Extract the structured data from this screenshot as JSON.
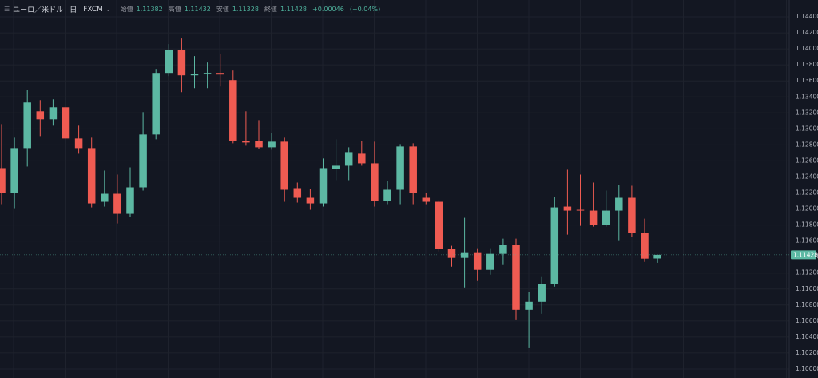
{
  "chart_data": {
    "type": "candlestick",
    "title": "ユーロ／米ドル",
    "interval": "日",
    "source": "FXCM",
    "ohlc_labels": [
      "始値",
      "高値",
      "安値",
      "終値"
    ],
    "change": "+0.00046",
    "change_pct": "(+0.04%)",
    "up_color": "#5cb8a3",
    "down_color": "#ef5b52",
    "grid": true,
    "ylim": [
      1.0989,
      1.1461
    ],
    "yticks": [
      {
        "value": 1.144,
        "label": "1.14400"
      },
      {
        "value": 1.142,
        "label": "1.14200"
      },
      {
        "value": 1.14,
        "label": "1.14000"
      },
      {
        "value": 1.138,
        "label": "1.13800"
      },
      {
        "value": 1.136,
        "label": "1.13600"
      },
      {
        "value": 1.134,
        "label": "1.13400"
      },
      {
        "value": 1.132,
        "label": "1.13200"
      },
      {
        "value": 1.13,
        "label": "1.13000"
      },
      {
        "value": 1.128,
        "label": "1.12800"
      },
      {
        "value": 1.126,
        "label": "1.12600"
      },
      {
        "value": 1.124,
        "label": "1.12400"
      },
      {
        "value": 1.122,
        "label": "1.12200"
      },
      {
        "value": 1.12,
        "label": "1.12000"
      },
      {
        "value": 1.118,
        "label": "1.11800"
      },
      {
        "value": 1.116,
        "label": "1.11600"
      },
      {
        "value": 1.114,
        "label": "1.11400"
      },
      {
        "value": 1.112,
        "label": "1.11200"
      },
      {
        "value": 1.11,
        "label": "1.11000"
      },
      {
        "value": 1.108,
        "label": "1.10800"
      },
      {
        "value": 1.106,
        "label": "1.10600"
      },
      {
        "value": 1.104,
        "label": "1.10400"
      },
      {
        "value": 1.102,
        "label": "1.10200"
      },
      {
        "value": 1.1,
        "label": "1.10000"
      }
    ],
    "open": [
      1.1251,
      1.122,
      1.1276,
      1.1322,
      1.1312,
      1.1327,
      1.1288,
      1.1276,
      1.1209,
      1.1219,
      1.1194,
      1.1227,
      1.1293,
      1.137,
      1.1399,
      1.1367,
      1.1369,
      1.137,
      1.1361,
      1.1285,
      1.1285,
      1.1277,
      1.1284,
      1.1226,
      1.1214,
      1.1207,
      1.125,
      1.1254,
      1.1269,
      1.1257,
      1.121,
      1.1224,
      1.1278,
      1.1214,
      1.1209,
      1.115,
      1.1139,
      1.1146,
      1.1124,
      1.1144,
      1.1155,
      1.1074,
      1.1084,
      1.1106,
      1.1203,
      1.1199,
      1.1198,
      1.118,
      1.1198,
      1.1214,
      1.117,
      1.11382
    ],
    "high": [
      1.1306,
      1.1289,
      1.1349,
      1.1336,
      1.1337,
      1.1343,
      1.1304,
      1.1289,
      1.1248,
      1.1243,
      1.1252,
      1.1321,
      1.1375,
      1.1406,
      1.1413,
      1.1391,
      1.1383,
      1.1394,
      1.1373,
      1.1322,
      1.1311,
      1.1295,
      1.1289,
      1.1233,
      1.1225,
      1.1263,
      1.1287,
      1.1277,
      1.1285,
      1.1284,
      1.1235,
      1.1281,
      1.1282,
      1.122,
      1.1211,
      1.1154,
      1.1189,
      1.1151,
      1.1151,
      1.1163,
      1.1163,
      1.1096,
      1.1116,
      1.1215,
      1.1249,
      1.1243,
      1.1233,
      1.1223,
      1.123,
      1.1229,
      1.1188,
      1.11432
    ],
    "low": [
      1.1206,
      1.1201,
      1.1253,
      1.1291,
      1.1304,
      1.1285,
      1.1269,
      1.1202,
      1.1203,
      1.1182,
      1.119,
      1.1223,
      1.1287,
      1.1366,
      1.1346,
      1.1351,
      1.1351,
      1.1353,
      1.1282,
      1.1279,
      1.1275,
      1.1274,
      1.1209,
      1.1208,
      1.1199,
      1.1203,
      1.1236,
      1.1236,
      1.1254,
      1.1203,
      1.1206,
      1.1206,
      1.1206,
      1.1206,
      1.1147,
      1.1128,
      1.1102,
      1.1111,
      1.1118,
      1.1131,
      1.1062,
      1.1027,
      1.1069,
      1.1103,
      1.1168,
      1.1179,
      1.1178,
      1.1178,
      1.1161,
      1.1165,
      1.1134,
      1.11328
    ],
    "close": [
      1.122,
      1.1276,
      1.1333,
      1.1312,
      1.1327,
      1.1288,
      1.1276,
      1.1207,
      1.1219,
      1.1194,
      1.1227,
      1.1293,
      1.137,
      1.1399,
      1.1367,
      1.1369,
      1.137,
      1.1368,
      1.1285,
      1.1283,
      1.1277,
      1.1284,
      1.1224,
      1.1214,
      1.1207,
      1.1251,
      1.1254,
      1.1271,
      1.1257,
      1.121,
      1.1224,
      1.1278,
      1.122,
      1.1209,
      1.115,
      1.1139,
      1.1146,
      1.1124,
      1.1144,
      1.1155,
      1.1074,
      1.1084,
      1.1106,
      1.1202,
      1.1198,
      1.1198,
      1.118,
      1.1198,
      1.1214,
      1.117,
      1.1138,
      1.11428
    ]
  }
}
